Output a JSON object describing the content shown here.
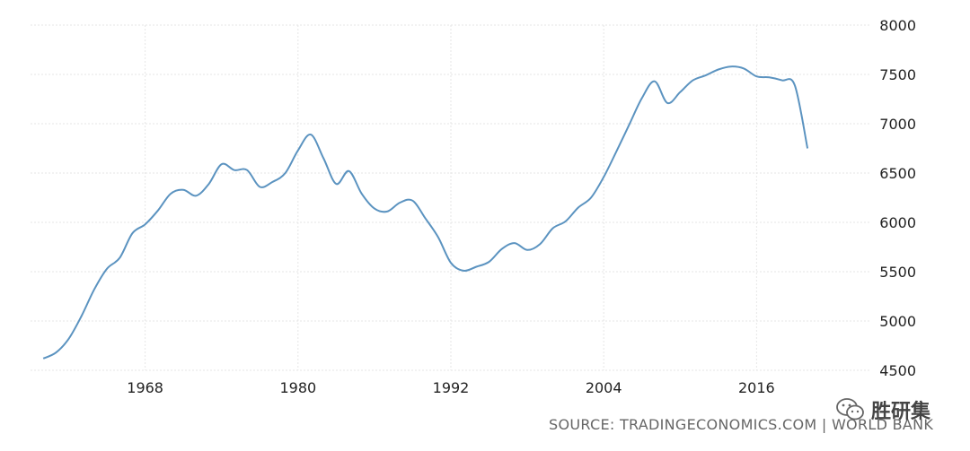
{
  "chart_data": {
    "type": "line",
    "title": "",
    "xlabel": "",
    "ylabel": "",
    "x_ticks": [
      "1968",
      "1980",
      "1992",
      "2004",
      "2016"
    ],
    "y_ticks": [
      "4500",
      "5000",
      "5500",
      "6000",
      "6500",
      "7000",
      "7500",
      "8000"
    ],
    "ylim": [
      4500,
      8000
    ],
    "xlim": [
      1959,
      2025
    ],
    "grid": true,
    "series": [
      {
        "color": "#5b93c0",
        "x": [
          1960,
          1961,
          1962,
          1963,
          1964,
          1965,
          1966,
          1967,
          1968,
          1969,
          1970,
          1971,
          1972,
          1973,
          1974,
          1975,
          1976,
          1977,
          1978,
          1979,
          1980,
          1981,
          1982,
          1983,
          1984,
          1985,
          1986,
          1987,
          1988,
          1989,
          1990,
          1991,
          1992,
          1993,
          1994,
          1995,
          1996,
          1997,
          1998,
          1999,
          2000,
          2001,
          2002,
          2003,
          2004,
          2005,
          2006,
          2007,
          2008,
          2009,
          2010,
          2011,
          2012,
          2013,
          2014,
          2015,
          2016,
          2017,
          2018,
          2019,
          2020
        ],
        "values": [
          4620,
          4680,
          4820,
          5050,
          5320,
          5530,
          5640,
          5890,
          5980,
          6120,
          6290,
          6330,
          6270,
          6390,
          6590,
          6530,
          6530,
          6360,
          6410,
          6500,
          6730,
          6890,
          6650,
          6390,
          6520,
          6290,
          6140,
          6110,
          6200,
          6220,
          6040,
          5850,
          5590,
          5510,
          5550,
          5600,
          5730,
          5790,
          5720,
          5780,
          5940,
          6010,
          6150,
          6250,
          6460,
          6720,
          6990,
          7260,
          7430,
          7210,
          7320,
          7440,
          7490,
          7550,
          7580,
          7560,
          7480,
          7470,
          7440,
          7390,
          6750
        ]
      }
    ]
  },
  "source": "SOURCE: TRADINGECONOMICS.COM | WORLD BANK",
  "watermark": {
    "text": "胜研集",
    "icon": "wechat-icon"
  }
}
